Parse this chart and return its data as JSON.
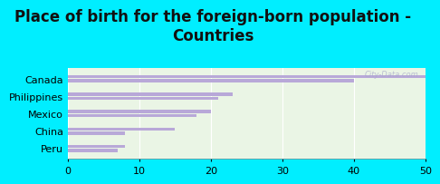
{
  "title": "Place of birth for the foreign-born population -\nCountries",
  "categories": [
    "Canada",
    "Philippines",
    "Mexico",
    "China",
    "Peru"
  ],
  "values1": [
    50,
    23,
    20,
    15,
    8
  ],
  "values2": [
    40,
    21,
    18,
    8,
    7
  ],
  "bar_color": "#b8a8d8",
  "background_outer": "#00eeff",
  "background_inner": "#eaf5e5",
  "xlim": [
    0,
    50
  ],
  "xticks": [
    0,
    10,
    20,
    30,
    40,
    50
  ],
  "title_fontsize": 12,
  "label_fontsize": 8,
  "tick_fontsize": 8,
  "watermark": "City-Data.com"
}
